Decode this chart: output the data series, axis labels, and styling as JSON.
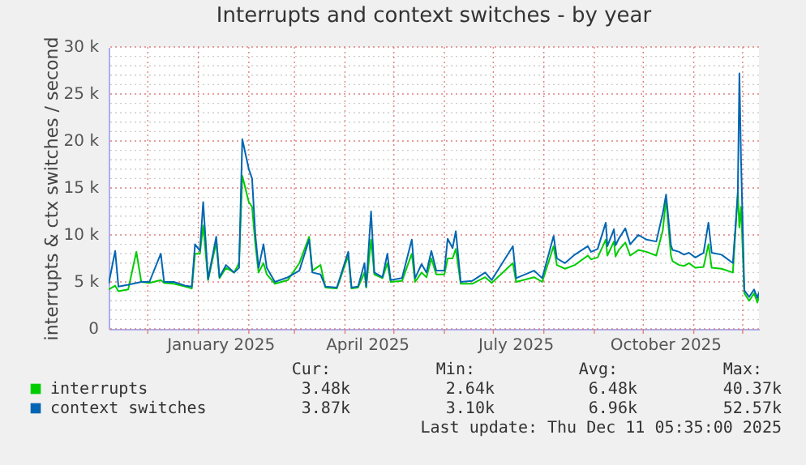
{
  "chart_data": {
    "type": "line",
    "title": "Interrupts and context switches - by year",
    "ylabel": "interrupts & ctx switches / second",
    "xlim": [
      "2024-11-07",
      "2025-12-11"
    ],
    "ylim": [
      0,
      30000
    ],
    "xticks": [
      {
        "value": "2024-12-01",
        "label": null
      },
      {
        "value": "2025-01-01",
        "label": null
      },
      {
        "value": "2025-01-15",
        "label": "January 2025"
      },
      {
        "value": "2025-02-01",
        "label": null
      },
      {
        "value": "2025-03-01",
        "label": null
      },
      {
        "value": "2025-04-01",
        "label": null
      },
      {
        "value": "2025-04-15",
        "label": "April 2025"
      },
      {
        "value": "2025-05-01",
        "label": null
      },
      {
        "value": "2025-06-01",
        "label": null
      },
      {
        "value": "2025-07-01",
        "label": null
      },
      {
        "value": "2025-07-15",
        "label": "July 2025"
      },
      {
        "value": "2025-08-01",
        "label": null
      },
      {
        "value": "2025-09-01",
        "label": null
      },
      {
        "value": "2025-10-01",
        "label": null
      },
      {
        "value": "2025-10-15",
        "label": "October 2025"
      },
      {
        "value": "2025-11-01",
        "label": null
      },
      {
        "value": "2025-12-01",
        "label": null
      }
    ],
    "yticks": [
      0,
      {
        "value": 1000,
        "label": null
      },
      {
        "value": 2000,
        "label": null
      },
      {
        "value": 3000,
        "label": null
      },
      {
        "value": 4000,
        "label": null
      },
      {
        "value": 5000,
        "label": "5 k"
      },
      {
        "value": 6000,
        "label": null
      },
      {
        "value": 7000,
        "label": null
      },
      {
        "value": 8000,
        "label": null
      },
      {
        "value": 9000,
        "label": null
      },
      {
        "value": 10000,
        "label": "10 k"
      },
      {
        "value": 11000,
        "label": null
      },
      {
        "value": 12000,
        "label": null
      },
      {
        "value": 13000,
        "label": null
      },
      {
        "value": 14000,
        "label": null
      },
      {
        "value": 15000,
        "label": "15 k"
      },
      {
        "value": 16000,
        "label": null
      },
      {
        "value": 17000,
        "label": null
      },
      {
        "value": 18000,
        "label": null
      },
      {
        "value": 19000,
        "label": null
      },
      {
        "value": 20000,
        "label": "20 k"
      },
      {
        "value": 21000,
        "label": null
      },
      {
        "value": 22000,
        "label": null
      },
      {
        "value": 23000,
        "label": null
      },
      {
        "value": 24000,
        "label": null
      },
      {
        "value": 25000,
        "label": "25 k"
      },
      {
        "value": 26000,
        "label": null
      },
      {
        "value": 27000,
        "label": null
      },
      {
        "value": 28000,
        "label": null
      },
      {
        "value": 29000,
        "label": null
      },
      {
        "value": 30000,
        "label": "30 k"
      }
    ],
    "grid": true,
    "legend": "bottom left",
    "marker": "none",
    "line_style": "solid",
    "annotations": [
      "Cur:",
      "Min:",
      "Avg:",
      "Max:",
      "3.48k",
      "2.64k",
      "6.48k",
      "40.37k",
      "3.87k",
      "3.10k",
      "6.96k",
      "52.57k",
      "Last update: Thu Dec 11 05:35:00 2025"
    ],
    "series": [
      {
        "name": "interrupts",
        "color": "#00cc00",
        "x": [
          "2024-11-07",
          "2024-11-11",
          "2024-11-13",
          "2024-11-19",
          "2024-11-24",
          "2024-11-27",
          "2024-12-02",
          "2024-12-09",
          "2024-12-11",
          "2024-12-17",
          "2024-12-24",
          "2024-12-28",
          "2024-12-30",
          "2025-01-02",
          "2025-01-04",
          "2025-01-07",
          "2025-01-12",
          "2025-01-14",
          "2025-01-18",
          "2025-01-23",
          "2025-01-26",
          "2025-01-28",
          "2025-02-01",
          "2025-02-03",
          "2025-02-05",
          "2025-02-07",
          "2025-02-10",
          "2025-02-12",
          "2025-02-17",
          "2025-02-25",
          "2025-03-04",
          "2025-03-10",
          "2025-03-12",
          "2025-03-17",
          "2025-03-20",
          "2025-03-27",
          "2025-04-03",
          "2025-04-05",
          "2025-04-09",
          "2025-04-13",
          "2025-04-14",
          "2025-04-17",
          "2025-04-19",
          "2025-04-24",
          "2025-04-27",
          "2025-04-29",
          "2025-05-06",
          "2025-05-12",
          "2025-05-14",
          "2025-05-18",
          "2025-05-21",
          "2025-05-24",
          "2025-05-27",
          "2025-06-01",
          "2025-06-03",
          "2025-06-06",
          "2025-06-08",
          "2025-06-11",
          "2025-06-18",
          "2025-06-26",
          "2025-06-30",
          "2025-07-13",
          "2025-07-15",
          "2025-07-26",
          "2025-07-31",
          "2025-08-07",
          "2025-08-09",
          "2025-08-14",
          "2025-08-20",
          "2025-08-28",
          "2025-08-30",
          "2025-09-03",
          "2025-09-08",
          "2025-09-09",
          "2025-09-13",
          "2025-09-14",
          "2025-09-16",
          "2025-09-20",
          "2025-09-23",
          "2025-09-28",
          "2025-10-03",
          "2025-10-09",
          "2025-10-13",
          "2025-10-15",
          "2025-10-18",
          "2025-10-19",
          "2025-10-23",
          "2025-10-26",
          "2025-10-29",
          "2025-11-02",
          "2025-11-07",
          "2025-11-10",
          "2025-11-12",
          "2025-11-18",
          "2025-11-25",
          "2025-11-28",
          "2025-11-29",
          "2025-11-30",
          "2025-12-02",
          "2025-12-05",
          "2025-12-08",
          "2025-12-10",
          "2025-12-11"
        ],
        "values": [
          4200,
          4600,
          4000,
          4200,
          8200,
          5000,
          4900,
          5200,
          4900,
          4800,
          4500,
          4300,
          8000,
          8000,
          11000,
          5200,
          9200,
          5400,
          6500,
          6000,
          7000,
          16300,
          13500,
          13000,
          9000,
          6000,
          7000,
          5800,
          4800,
          5200,
          7000,
          9800,
          6200,
          6800,
          4400,
          4300,
          7800,
          4300,
          4400,
          6000,
          4400,
          9500,
          5800,
          5400,
          7000,
          5000,
          5100,
          8000,
          5000,
          6000,
          5500,
          7500,
          5800,
          5800,
          7500,
          7500,
          8500,
          4800,
          4800,
          5500,
          4900,
          7000,
          5000,
          5500,
          5000,
          8800,
          6800,
          6400,
          6800,
          7800,
          7400,
          7600,
          9500,
          7800,
          9300,
          7700,
          8400,
          9200,
          7800,
          8400,
          8200,
          7800,
          10500,
          13800,
          7800,
          7200,
          6800,
          6700,
          7000,
          6500,
          6600,
          9000,
          6500,
          6400,
          6000,
          14500,
          10800,
          13000,
          3800,
          3000,
          3800,
          2800,
          3500
        ]
      },
      {
        "name": "context switches",
        "color": "#0066b3",
        "x": [
          "2024-11-07",
          "2024-11-11",
          "2024-11-13",
          "2024-11-19",
          "2024-11-27",
          "2024-12-02",
          "2024-12-09",
          "2024-12-11",
          "2024-12-17",
          "2024-12-24",
          "2024-12-28",
          "2024-12-30",
          "2025-01-02",
          "2025-01-04",
          "2025-01-07",
          "2025-01-12",
          "2025-01-14",
          "2025-01-18",
          "2025-01-23",
          "2025-01-26",
          "2025-01-28",
          "2025-02-01",
          "2025-02-03",
          "2025-02-05",
          "2025-02-07",
          "2025-02-10",
          "2025-02-12",
          "2025-02-17",
          "2025-02-25",
          "2025-03-04",
          "2025-03-10",
          "2025-03-12",
          "2025-03-17",
          "2025-03-20",
          "2025-03-27",
          "2025-04-03",
          "2025-04-05",
          "2025-04-09",
          "2025-04-13",
          "2025-04-14",
          "2025-04-17",
          "2025-04-19",
          "2025-04-24",
          "2025-04-27",
          "2025-04-29",
          "2025-05-06",
          "2025-05-12",
          "2025-05-14",
          "2025-05-18",
          "2025-05-21",
          "2025-05-24",
          "2025-05-27",
          "2025-06-01",
          "2025-06-03",
          "2025-06-06",
          "2025-06-08",
          "2025-06-11",
          "2025-06-18",
          "2025-06-26",
          "2025-06-30",
          "2025-07-13",
          "2025-07-15",
          "2025-07-26",
          "2025-07-31",
          "2025-08-07",
          "2025-08-09",
          "2025-08-14",
          "2025-08-20",
          "2025-08-28",
          "2025-08-30",
          "2025-09-03",
          "2025-09-08",
          "2025-09-09",
          "2025-09-13",
          "2025-09-14",
          "2025-09-16",
          "2025-09-20",
          "2025-09-23",
          "2025-09-28",
          "2025-10-03",
          "2025-10-09",
          "2025-10-13",
          "2025-10-15",
          "2025-10-18",
          "2025-10-19",
          "2025-10-23",
          "2025-10-26",
          "2025-10-29",
          "2025-11-02",
          "2025-11-07",
          "2025-11-10",
          "2025-11-12",
          "2025-11-18",
          "2025-11-25",
          "2025-11-28",
          "2025-11-29",
          "2025-11-30",
          "2025-12-02",
          "2025-12-05",
          "2025-12-08",
          "2025-12-10",
          "2025-12-11"
        ],
        "values": [
          4800,
          8300,
          4500,
          4700,
          5000,
          5000,
          8000,
          5000,
          5000,
          4600,
          4500,
          9000,
          8300,
          13500,
          5300,
          9800,
          5500,
          6800,
          6000,
          6500,
          20200,
          17000,
          16000,
          10000,
          6500,
          9000,
          6500,
          5000,
          5500,
          6200,
          9500,
          6000,
          5800,
          4500,
          4400,
          8200,
          4400,
          4500,
          7000,
          4500,
          12500,
          6000,
          5500,
          8000,
          5200,
          5400,
          9500,
          5400,
          6900,
          6000,
          8300,
          6200,
          6200,
          9600,
          8600,
          10400,
          5000,
          5100,
          6000,
          5200,
          8800,
          5400,
          6200,
          5400,
          9900,
          7500,
          7000,
          7900,
          8800,
          8200,
          8500,
          11300,
          8800,
          10600,
          8900,
          9600,
          10700,
          9000,
          10000,
          9500,
          9300,
          12300,
          14300,
          8900,
          8400,
          8200,
          7900,
          8100,
          7600,
          8100,
          11300,
          8100,
          7900,
          7000,
          14300,
          27200,
          18000,
          4100,
          3400,
          4200,
          3300,
          3900
        ]
      }
    ]
  }
}
